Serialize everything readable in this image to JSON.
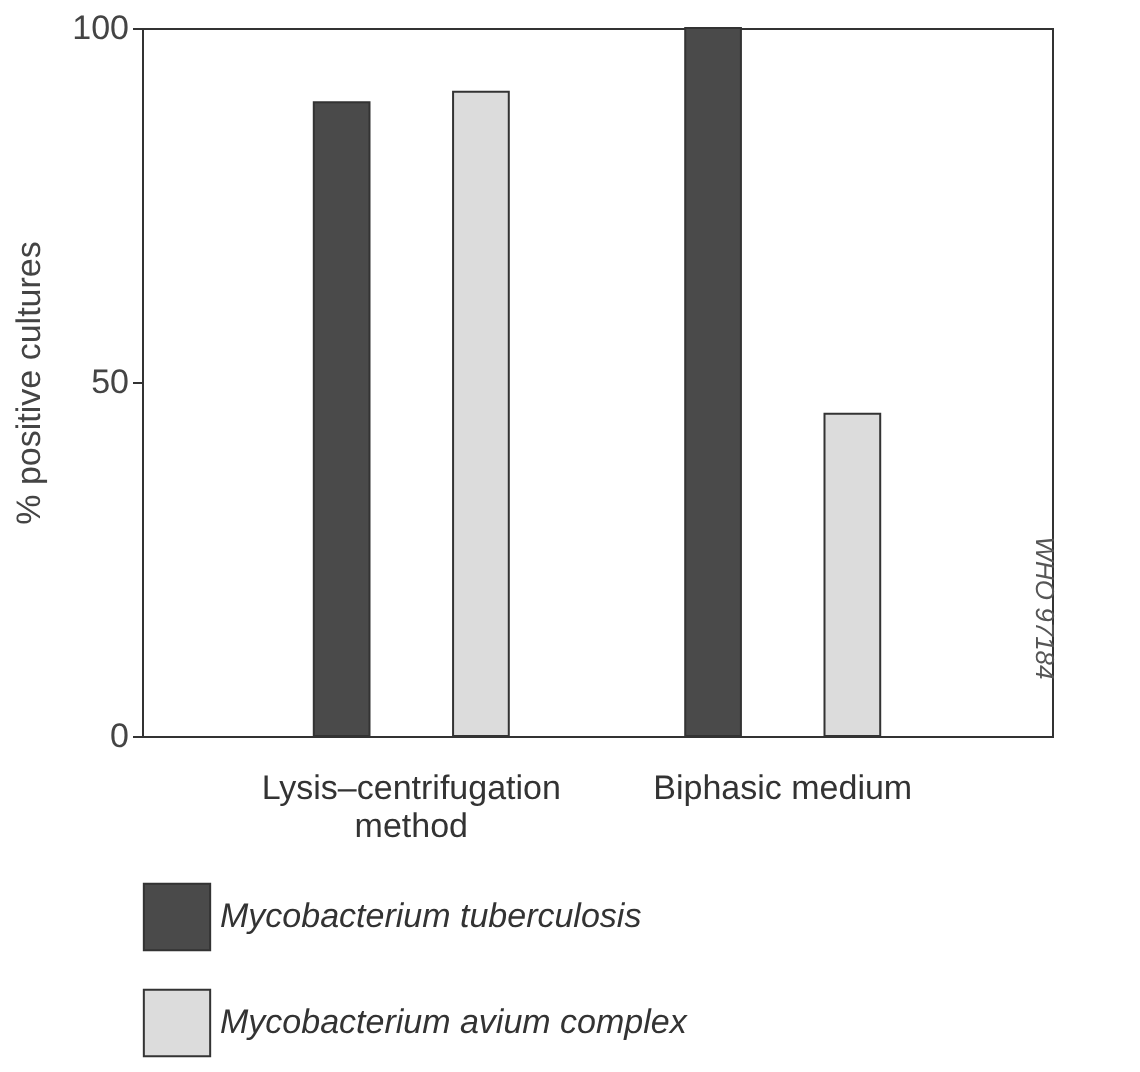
{
  "chart_data": {
    "type": "bar",
    "ylabel": "% positive cultures",
    "categories": [
      "Lysis–centrifugation method",
      "Biphasic medium"
    ],
    "series": [
      {
        "name": "Mycobacterium tuberculosis",
        "color": "#4a4a4a",
        "values": [
          89.5,
          100
        ]
      },
      {
        "name": "Mycobacterium avium complex",
        "color": "#dcdcdc",
        "values": [
          91,
          45.5
        ]
      }
    ],
    "ylim": [
      0,
      100
    ],
    "yticks": [
      0,
      50,
      100
    ],
    "legend": "bottom",
    "grid": false,
    "annotations": [
      "WHO 97184"
    ]
  }
}
